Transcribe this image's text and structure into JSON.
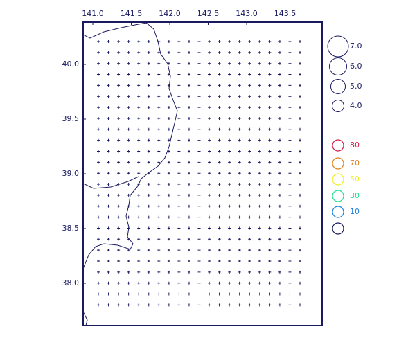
{
  "map": {
    "xticks": [
      {
        "value": 141.0,
        "label": "141.0"
      },
      {
        "value": 141.5,
        "label": "141.5"
      },
      {
        "value": 142.0,
        "label": "142.0"
      },
      {
        "value": 142.5,
        "label": "142.5"
      },
      {
        "value": 143.0,
        "label": "143.0"
      },
      {
        "value": 143.5,
        "label": "143.5"
      }
    ],
    "yticks": [
      {
        "value": 40.0,
        "label": "40.0"
      },
      {
        "value": 39.5,
        "label": "39.5"
      },
      {
        "value": 39.0,
        "label": "39.0"
      },
      {
        "value": 38.5,
        "label": "38.5"
      },
      {
        "value": 38.0,
        "label": "38.0"
      }
    ]
  },
  "legend": {
    "magnitude": [
      {
        "value": 7.0,
        "label": "7.0"
      },
      {
        "value": 6.0,
        "label": "6.0"
      },
      {
        "value": 5.0,
        "label": "5.0"
      },
      {
        "value": 4.0,
        "label": "4.0"
      }
    ],
    "depth": [
      {
        "label": "80",
        "color": "#d0204a"
      },
      {
        "label": "70",
        "color": "#e08020"
      },
      {
        "label": "50",
        "color": "#f0f020"
      },
      {
        "label": "30",
        "color": "#20e090"
      },
      {
        "label": "10",
        "color": "#2080e0"
      },
      {
        "color": "#1a1a60"
      }
    ]
  }
}
